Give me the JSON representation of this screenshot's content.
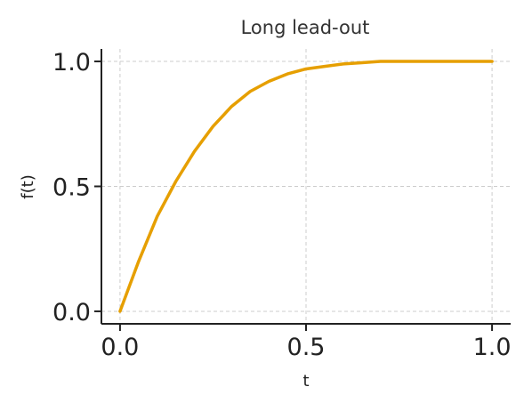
{
  "chart_data": {
    "type": "line",
    "title": "Long lead-out",
    "xlabel": "t",
    "ylabel": "f(t)",
    "xlim": [
      -0.05,
      1.05
    ],
    "ylim": [
      -0.05,
      1.05
    ],
    "xticks": [
      0.0,
      0.5,
      1.0
    ],
    "xtick_labels": [
      "0.0",
      "0.5",
      "1.0"
    ],
    "yticks": [
      0.0,
      0.5,
      1.0
    ],
    "ytick_labels": [
      "0.0",
      "0.5",
      "1.0"
    ],
    "grid": true,
    "series": [
      {
        "color": "#E69F00",
        "x": [
          0.0,
          0.05,
          0.1,
          0.15,
          0.2,
          0.25,
          0.3,
          0.35,
          0.4,
          0.45,
          0.5,
          0.55,
          0.6,
          0.65,
          0.7,
          0.75,
          0.8,
          0.85,
          0.9,
          0.95,
          1.0
        ],
        "y": [
          0.0,
          0.2,
          0.38,
          0.52,
          0.64,
          0.74,
          0.82,
          0.88,
          0.92,
          0.95,
          0.97,
          0.98,
          0.99,
          0.995,
          1.0,
          1.0,
          1.0,
          1.0,
          1.0,
          1.0,
          1.0
        ]
      }
    ]
  },
  "colors": {
    "series": "#E69F00",
    "grid": "#cccccc",
    "axis": "#222222",
    "text": "#333333"
  }
}
